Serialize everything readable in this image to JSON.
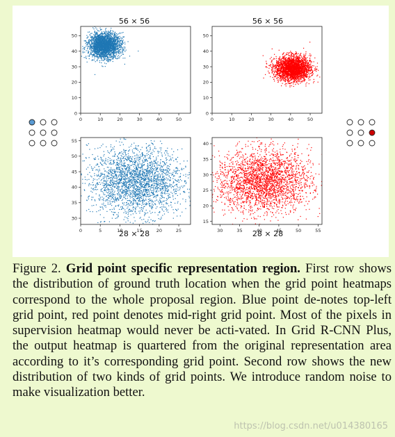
{
  "figure": {
    "top_left_title": "56 × 56",
    "top_right_title": "56 × 56",
    "bottom_left_title": "28 × 28",
    "bottom_right_title": "28 × 28"
  },
  "chart_data": [
    {
      "type": "scatter",
      "title": "56 × 56",
      "color": "#1f77b4",
      "xlim": [
        0,
        56
      ],
      "ylim": [
        0,
        56
      ],
      "xticks": [
        "0",
        "10",
        "20",
        "30",
        "40",
        "50"
      ],
      "yticks": [
        "0",
        "10",
        "20",
        "30",
        "40",
        "50"
      ],
      "cluster": {
        "center": [
          12,
          44
        ],
        "spread": [
          4,
          4
        ]
      }
    },
    {
      "type": "scatter",
      "title": "56 × 56",
      "color": "#ff0000",
      "xlim": [
        0,
        56
      ],
      "ylim": [
        0,
        56
      ],
      "xticks": [
        "0",
        "10",
        "20",
        "30",
        "40",
        "50"
      ],
      "yticks": [
        "0",
        "10",
        "20",
        "30",
        "40",
        "50"
      ],
      "cluster": {
        "center": [
          41,
          29
        ],
        "spread": [
          4.5,
          4
        ]
      }
    },
    {
      "type": "scatter",
      "title": "28 × 28",
      "color": "#1f77b4",
      "xlim": [
        0,
        28
      ],
      "ylim": [
        28,
        56
      ],
      "xticks": [
        "0",
        "5",
        "10",
        "15",
        "20",
        "25"
      ],
      "yticks": [
        "30",
        "35",
        "40",
        "45",
        "50",
        "55"
      ],
      "cluster": {
        "center": [
          14,
          42
        ],
        "spread": [
          6,
          5.5
        ]
      }
    },
    {
      "type": "scatter",
      "title": "28 × 28",
      "color": "#ff0000",
      "xlim": [
        28,
        56
      ],
      "ylim": [
        14,
        42
      ],
      "xticks": [
        "30",
        "35",
        "40",
        "45",
        "50",
        "55"
      ],
      "yticks": [
        "15",
        "20",
        "25",
        "30",
        "35",
        "40"
      ],
      "cluster": {
        "center": [
          41,
          28
        ],
        "spread": [
          6,
          5
        ]
      }
    }
  ],
  "grid_icons": {
    "left_filled": [
      0,
      0
    ],
    "left_color": "#5a9bd4",
    "right_filled": [
      1,
      2
    ],
    "right_color": "#cc0000"
  },
  "caption": {
    "label": "Figure 2.",
    "title": "Grid point specific representation region.",
    "body": "First row shows the distribution of ground truth location when the grid point heatmaps correspond to the whole proposal region. Blue point de-notes top-left grid point, red point denotes mid-right grid point. Most of the pixels in supervision heatmap would never be acti-vated. In Grid R-CNN Plus, the output heatmap is quartered from the original representation area according to it’s corresponding grid point. Second row shows the new distribution of two kinds of grid points. We introduce random noise to make visualization better."
  },
  "watermark": "https://blog.csdn.net/u014380165"
}
